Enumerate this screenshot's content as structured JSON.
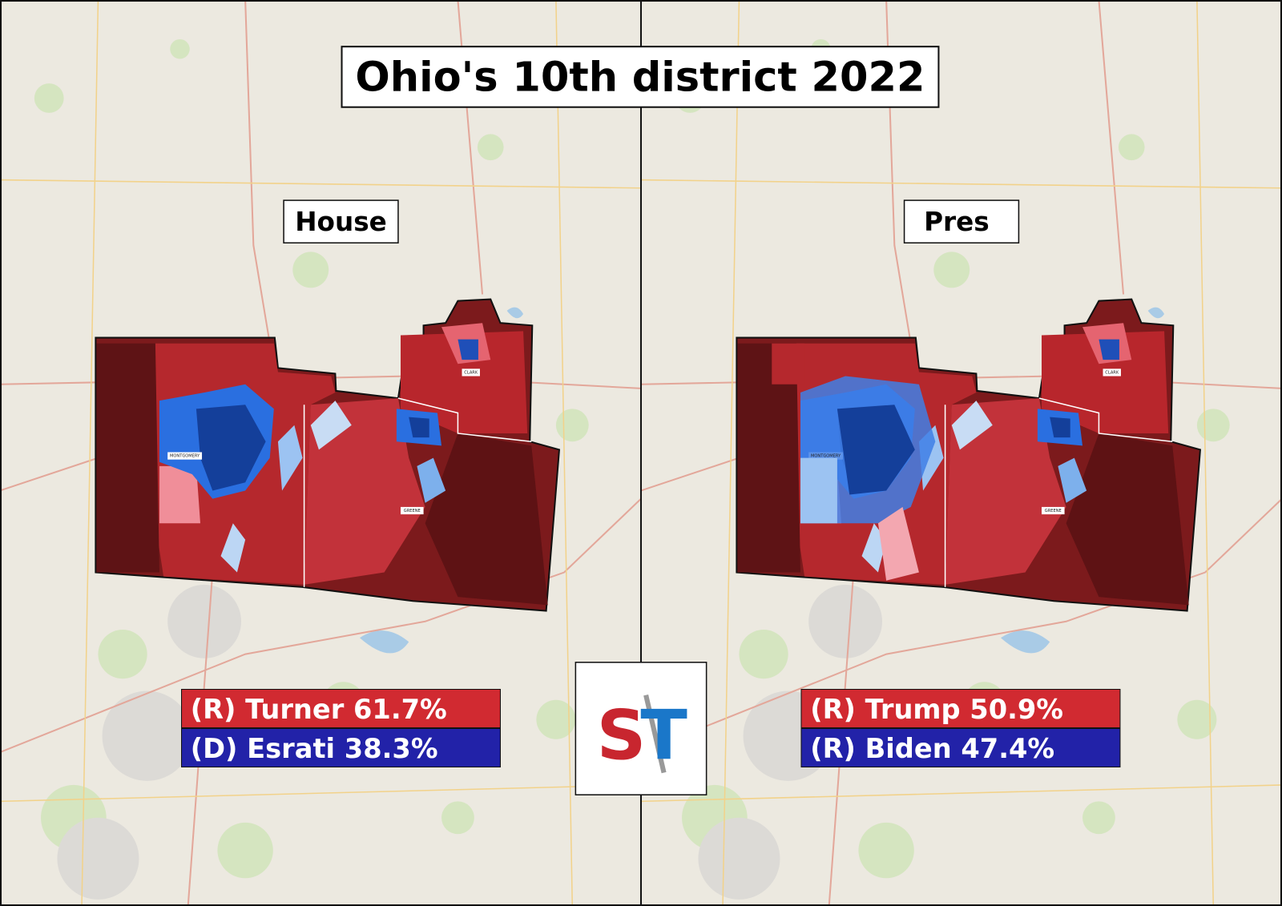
{
  "title": "Ohio's 10th district 2022",
  "panels": [
    {
      "label": "House",
      "results": [
        "(R) Turner 61.7%",
        "(D) Esrati 38.3%"
      ],
      "counties": [
        "MONTGOMERY",
        "CLARK",
        "GREENE"
      ]
    },
    {
      "label": "Pres",
      "results": [
        "(R) Trump 50.9%",
        "(R) Biden 47.4%"
      ],
      "counties": [
        "MONTGOMERY",
        "CLARK",
        "GREENE"
      ]
    }
  ],
  "logo": {
    "left": "S",
    "right": "T"
  }
}
